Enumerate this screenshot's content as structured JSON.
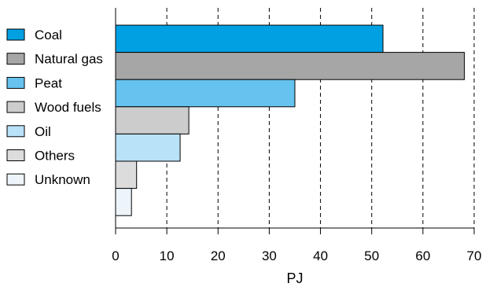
{
  "chart_data": {
    "type": "bar",
    "orientation": "horizontal",
    "categories": [
      "Coal",
      "Natural gas",
      "Peat",
      "Wood fuels",
      "Oil",
      "Others",
      "Unknown"
    ],
    "values": [
      52.2,
      68.1,
      35.0,
      14.3,
      12.6,
      4.1,
      3.1
    ],
    "colors": [
      "#00a0e3",
      "#a6a6a6",
      "#66c3ef",
      "#cccccc",
      "#b9e1f7",
      "#dcdcdc",
      "#edf5fb"
    ],
    "xlabel": "PJ",
    "ylabel": "",
    "xlim": [
      0,
      70
    ],
    "xticks": [
      0,
      10,
      20,
      30,
      40,
      50,
      60,
      70
    ],
    "grid": "vertical dashed",
    "legend": "left"
  }
}
